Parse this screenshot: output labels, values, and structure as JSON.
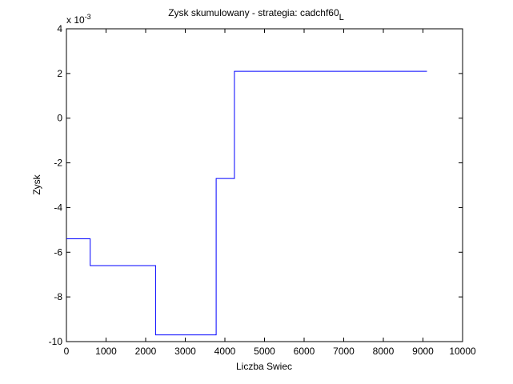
{
  "chart_data": {
    "type": "line",
    "title": "Zysk skumulowany - strategia: cadchf60",
    "title_subscript": "L",
    "xlabel": "Liczba Swiec",
    "ylabel": "Zysk",
    "xlim": [
      0,
      10000
    ],
    "ylim": [
      -10,
      4
    ],
    "y_exponent_label": "x 10",
    "y_exponent_power": "-3",
    "grid": false,
    "line_color": "#0000ff",
    "xticks": [
      "0",
      "1000",
      "2000",
      "3000",
      "4000",
      "5000",
      "6000",
      "7000",
      "8000",
      "9000",
      "10000"
    ],
    "yticks": [
      "4",
      "2",
      "0",
      "-2",
      "-4",
      "-6",
      "-8",
      "-10"
    ],
    "series": [
      {
        "x": [
          0,
          600,
          600,
          2250,
          2250,
          3780,
          3780,
          4240,
          4240,
          9100
        ],
        "y": [
          -5.4,
          -5.4,
          -6.6,
          -6.6,
          -9.7,
          -9.7,
          -2.7,
          -2.7,
          2.1,
          2.1
        ]
      }
    ]
  }
}
